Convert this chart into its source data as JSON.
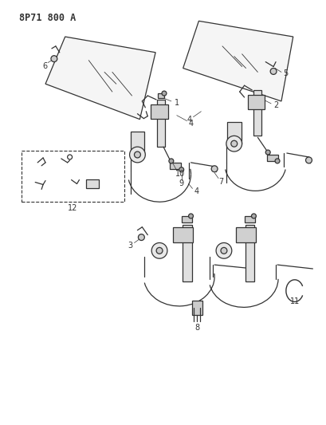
{
  "title": "8P71 800 A",
  "background_color": "#ffffff",
  "line_color": "#333333",
  "figsize": [
    4.09,
    5.33
  ],
  "dpi": 100,
  "title_fontsize": 8.5,
  "label_fontsize": 7,
  "lw": 0.9
}
